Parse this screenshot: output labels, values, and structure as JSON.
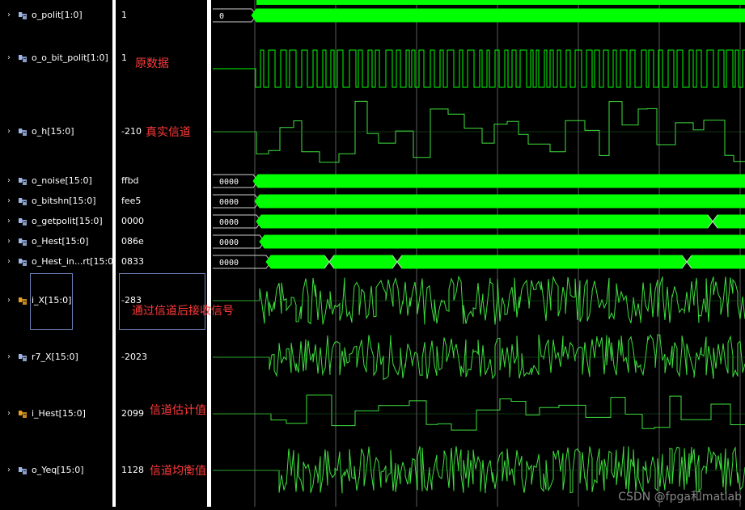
{
  "signals": [
    {
      "name": "o_polit[1:0]",
      "value": "1",
      "icon": "bus-signal-icon",
      "icon_color": "#9fb8e8"
    },
    {
      "name": "o_o_bit_polit[1:0]",
      "value": "1",
      "icon": "bus-signal-icon",
      "icon_color": "#9fb8e8"
    },
    {
      "name": "o_h[15:0]",
      "value": "-210",
      "icon": "bus-signal-icon",
      "icon_color": "#9fb8e8"
    },
    {
      "name": "o_noise[15:0]",
      "value": "ffbd",
      "icon": "bus-signal-icon",
      "icon_color": "#9fb8e8"
    },
    {
      "name": "o_bitshn[15:0]",
      "value": "fee5",
      "icon": "bus-signal-icon",
      "icon_color": "#9fb8e8"
    },
    {
      "name": "o_getpolit[15:0]",
      "value": "0000",
      "icon": "bus-signal-icon",
      "icon_color": "#9fb8e8"
    },
    {
      "name": "o_Hest[15:0]",
      "value": "086e",
      "icon": "bus-signal-icon",
      "icon_color": "#9fb8e8"
    },
    {
      "name": "o_Hest_in...rt[15:0]",
      "value": "0833",
      "icon": "bus-signal-icon",
      "icon_color": "#9fb8e8"
    },
    {
      "name": "i_X[15:0]",
      "value": "-283",
      "icon": "input-bus-icon",
      "icon_color": "#e8a020"
    },
    {
      "name": "r7_X[15:0]",
      "value": "-2023",
      "icon": "bus-signal-icon",
      "icon_color": "#9fb8e8"
    },
    {
      "name": "i_Hest[15:0]",
      "value": "2099",
      "icon": "input-bus-icon",
      "icon_color": "#e8a020"
    },
    {
      "name": "o_Yeq[15:0]",
      "value": "1128",
      "icon": "bus-signal-icon",
      "icon_color": "#9fb8e8"
    }
  ],
  "wave_labels": {
    "o_polit": "0",
    "o_noise": "0000",
    "o_bitshn": "0000",
    "o_getpolit": "0000",
    "o_Hest": "0000",
    "o_Hest_interp": "0000"
  },
  "annotations": {
    "raw_data": "原数据",
    "true_channel": "真实信道",
    "received_signal": "通过信道后接收信号",
    "channel_estimate": "信道估计值",
    "channel_equalized": "信道均衡值"
  },
  "watermark": "CSDN @fpga和matlab",
  "colors": {
    "background": "#000000",
    "wave": "#00ff00",
    "analog_wave": "#3ee03e",
    "annotation": "#ff3a3a",
    "cursor_grid": "#5a5a5a",
    "separator": "#ffffff",
    "selection": "#6b82b8"
  }
}
